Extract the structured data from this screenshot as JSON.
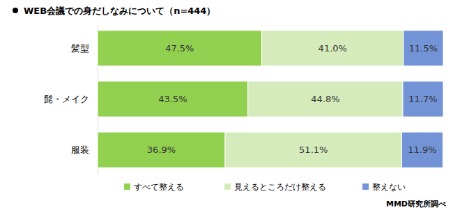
{
  "chart_data": {
    "type": "bar",
    "title": "WEB会議での身だしなみについて（n=444）",
    "orientation": "horizontal",
    "stacked": true,
    "data_labels": true,
    "tick_labels": "y",
    "legend": "bottom",
    "xlim": [
      0,
      100
    ],
    "categories": [
      "髪型",
      "髭・メイク",
      "服装"
    ],
    "series": [
      {
        "name": "すべて整える",
        "color": "#92d050",
        "values": [
          47.5,
          43.5,
          36.9
        ],
        "value_labels": [
          "47.5%",
          "43.5%",
          "36.9%"
        ]
      },
      {
        "name": "見えるところだけ整える",
        "color": "#d5ebbb",
        "values": [
          41.0,
          44.8,
          51.1
        ],
        "value_labels": [
          "41.0%",
          "44.8%",
          "51.1%"
        ]
      },
      {
        "name": "整えない",
        "color": "#7293d6",
        "values": [
          11.5,
          11.7,
          11.9
        ],
        "value_labels": [
          "11.5%",
          "11.7%",
          "11.9%"
        ]
      }
    ],
    "annotations": [
      "MMD研究所調べ"
    ]
  }
}
